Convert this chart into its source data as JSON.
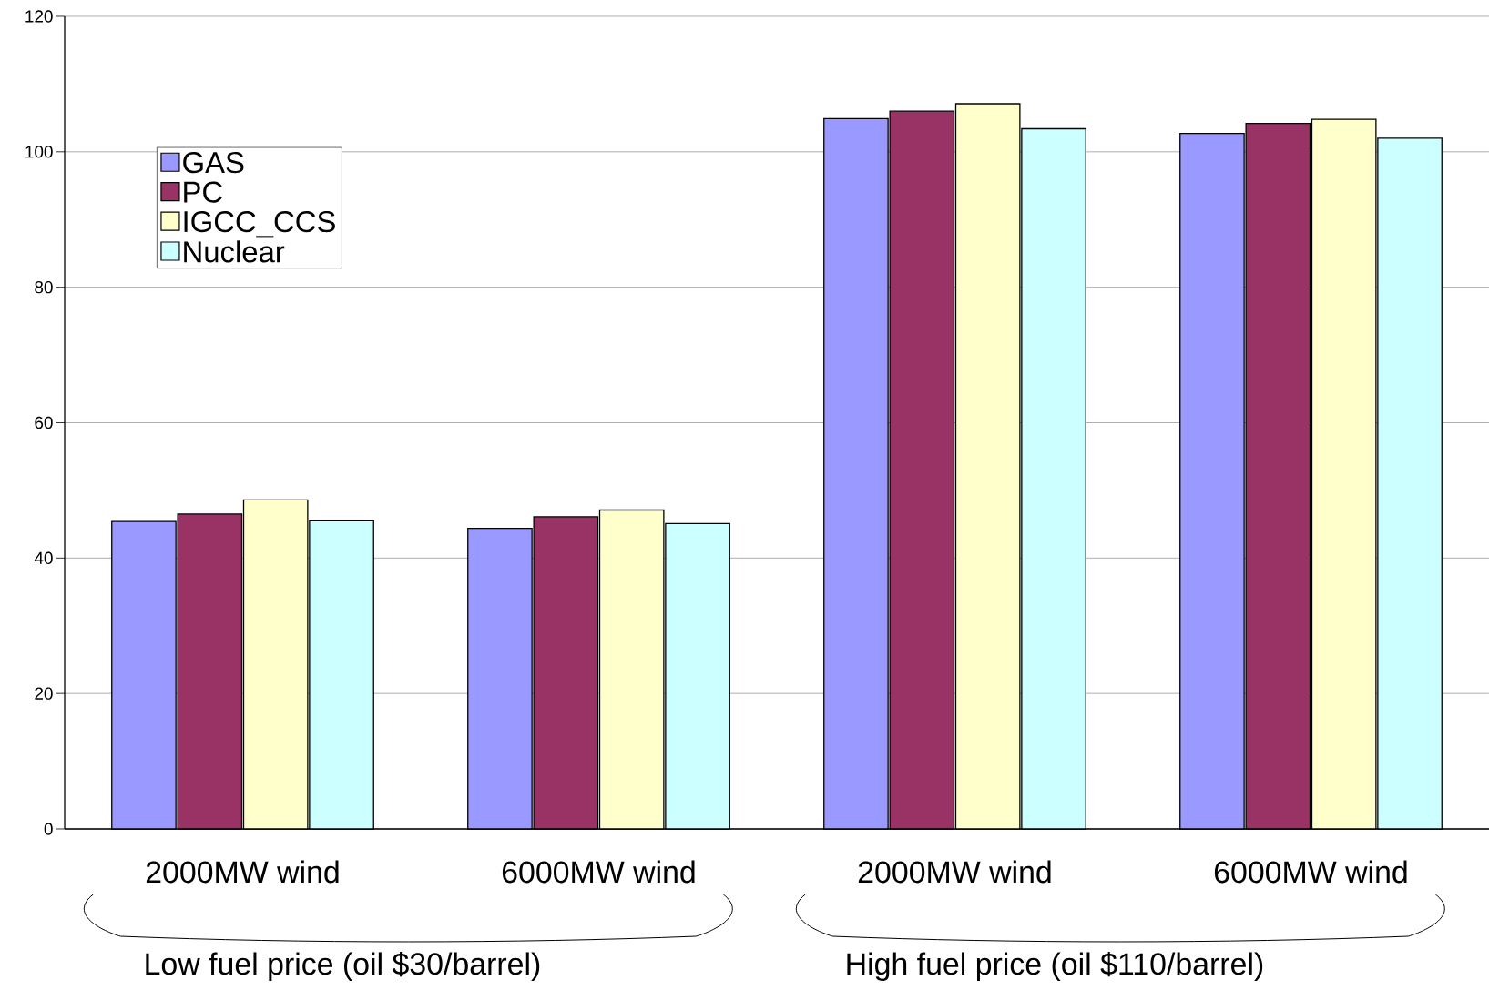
{
  "chart_data": {
    "type": "bar",
    "categories": [
      "2000MW wind",
      "6000MW wind",
      "2000MW wind",
      "6000MW wind"
    ],
    "series": [
      {
        "name": "GAS",
        "color": "#9999ff",
        "values": [
          45.4,
          44.4,
          104.9,
          102.7
        ]
      },
      {
        "name": "PC",
        "color": "#993366",
        "values": [
          46.5,
          46.1,
          106.0,
          104.2
        ]
      },
      {
        "name": "IGCC_CCS",
        "color": "#ffffcc",
        "values": [
          48.6,
          47.1,
          107.1,
          104.8
        ]
      },
      {
        "name": "Nuclear",
        "color": "#ccffff",
        "values": [
          45.5,
          45.1,
          103.4,
          102.0
        ]
      }
    ],
    "ylim": [
      0,
      120
    ],
    "yticks": [
      0,
      20,
      40,
      60,
      80,
      100,
      120
    ],
    "grid": "y",
    "legend": "top left",
    "annotations": [
      "Low fuel price (oil $30/barrel)",
      "High fuel price (oil $110/barrel)"
    ]
  }
}
